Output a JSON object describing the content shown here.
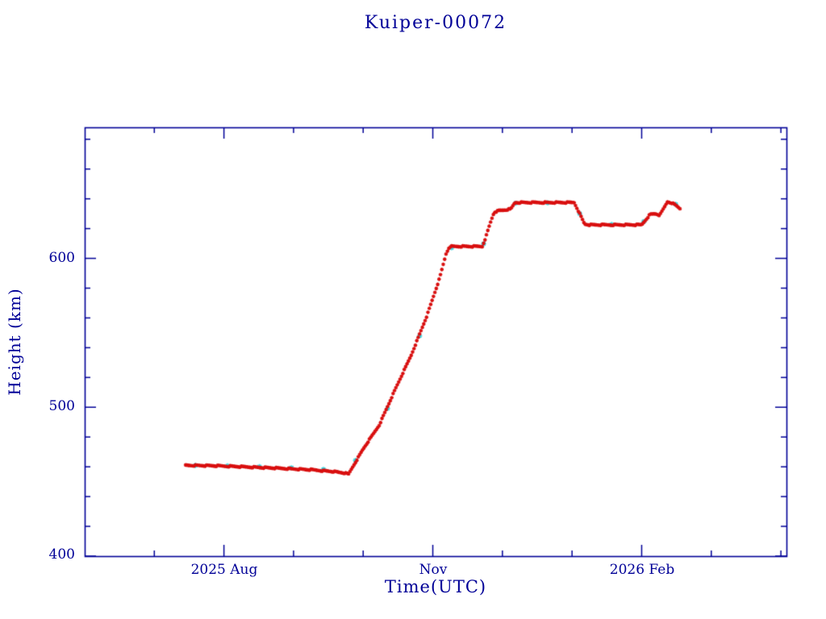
{
  "chart_data": {
    "type": "scatter",
    "title": "Kuiper-00072",
    "xlabel": "Time(UTC)",
    "ylabel": "Height (km)",
    "x_unit": "months since 2025-06-01",
    "xlim": [
      0,
      10.08
    ],
    "ylim": [
      400,
      688
    ],
    "x_major_ticks": [
      {
        "t": 2,
        "label": "2025 Aug"
      },
      {
        "t": 5,
        "label": "Nov"
      },
      {
        "t": 8,
        "label": "2026 Feb"
      }
    ],
    "x_minor_step_months": 1,
    "y_major_ticks": [
      {
        "v": 400,
        "label": "400"
      },
      {
        "v": 500,
        "label": "500"
      },
      {
        "v": 600,
        "label": "600"
      }
    ],
    "y_minor_step": 20,
    "grid": false,
    "axis_color": "#000097",
    "background_color": "#ffffff",
    "series": [
      {
        "name": "cyan-markers",
        "marker": "asterisk",
        "color": "#35d8e2",
        "size": 3.2,
        "every_nth": 23
      },
      {
        "name": "red-markers",
        "marker": "asterisk",
        "color": "#d90f0f",
        "size": 2.3,
        "every_nth": 1
      }
    ],
    "sample_step_months": 0.02,
    "control_points": [
      [
        1.45,
        461.0
      ],
      [
        1.75,
        460.8
      ],
      [
        2.05,
        460.4
      ],
      [
        2.45,
        459.7
      ],
      [
        2.85,
        458.9
      ],
      [
        3.25,
        458.0
      ],
      [
        3.55,
        456.9
      ],
      [
        3.72,
        455.9
      ],
      [
        3.79,
        455.1
      ],
      [
        4.0,
        472.0
      ],
      [
        4.23,
        488.0
      ],
      [
        4.46,
        512.0
      ],
      [
        4.69,
        535.0
      ],
      [
        4.92,
        562.0
      ],
      [
        5.1,
        587.0
      ],
      [
        5.19,
        603.0
      ],
      [
        5.24,
        608.0
      ],
      [
        5.71,
        608.0
      ],
      [
        5.76,
        614.0
      ],
      [
        5.82,
        623.0
      ],
      [
        5.88,
        631.0
      ],
      [
        5.95,
        632.0
      ],
      [
        6.12,
        633.0
      ],
      [
        6.18,
        637.5
      ],
      [
        7.03,
        637.5
      ],
      [
        7.08,
        633.0
      ],
      [
        7.13,
        628.0
      ],
      [
        7.18,
        623.0
      ],
      [
        7.26,
        622.5
      ],
      [
        8.0,
        622.5
      ],
      [
        8.06,
        626.0
      ],
      [
        8.12,
        629.5
      ],
      [
        8.2,
        630.0
      ],
      [
        8.26,
        629.0
      ],
      [
        8.31,
        633.0
      ],
      [
        8.37,
        638.0
      ],
      [
        8.42,
        637.5
      ],
      [
        8.48,
        636.0
      ],
      [
        8.55,
        633.5
      ]
    ]
  }
}
